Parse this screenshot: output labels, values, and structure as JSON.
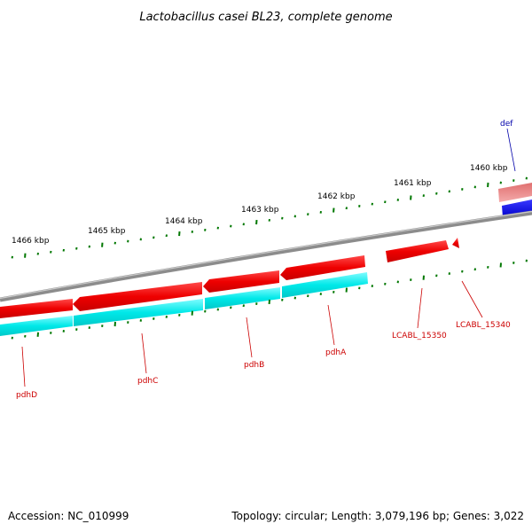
{
  "title": "Lactobacillus casei BL23, complete genome",
  "footer": {
    "accession": "Accession: NC_010999",
    "summary": "Topology: circular; Length: 3,079,196 bp; Genes: 3,022"
  },
  "colors": {
    "forward_gene": "#ee0000",
    "reverse_cds": "#00e5e5",
    "highlight_gene": "#0000ee",
    "tick": "#007700",
    "backbone": "#888888",
    "label_gene": "#cc0000",
    "label_highlight": "#0000aa"
  },
  "scale_labels": [
    "1466 kbp",
    "1465 kbp",
    "1464 kbp",
    "1463 kbp",
    "1462 kbp",
    "1461 kbp",
    "1460 kbp"
  ],
  "gene_labels": [
    {
      "name": "pdhD",
      "tone": "gene"
    },
    {
      "name": "pdhC",
      "tone": "gene"
    },
    {
      "name": "pdhB",
      "tone": "gene"
    },
    {
      "name": "pdhA",
      "tone": "gene"
    },
    {
      "name": "LCABL_15350",
      "tone": "gene"
    },
    {
      "name": "LCABL_15340",
      "tone": "gene"
    },
    {
      "name": "def",
      "tone": "highlight"
    }
  ]
}
